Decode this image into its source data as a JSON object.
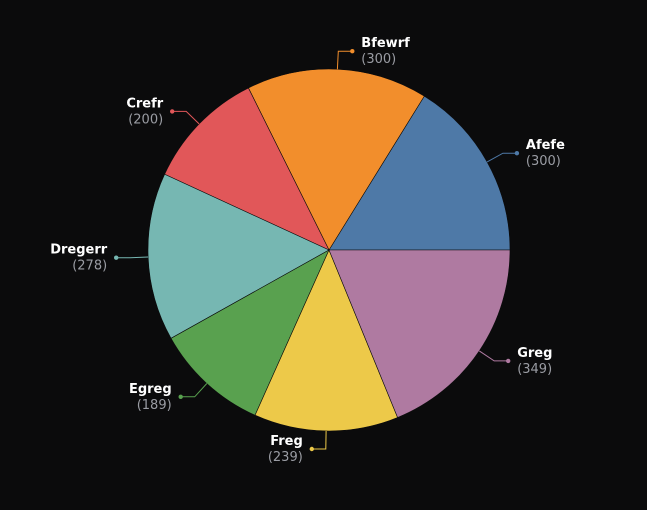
{
  "chart_data": {
    "type": "pie",
    "categories": [
      "Afefe",
      "Bfewrf",
      "Crefr",
      "Dregerr",
      "Egreg",
      "Freg",
      "Greg"
    ],
    "values": [
      300,
      300,
      200,
      278,
      189,
      239,
      349
    ],
    "value_labels": [
      "(300)",
      "(300)",
      "(200)",
      "(278)",
      "(189)",
      "(239)",
      "(349)"
    ],
    "colors": [
      "#4e79a7",
      "#f28e2c",
      "#e15759",
      "#76b7b2",
      "#59a14f",
      "#edc949",
      "#af7aa1"
    ],
    "start_angle_deg": 0,
    "direction": "counter-clockwise",
    "legend": "none",
    "title": "",
    "background": "#0b0b0c"
  }
}
